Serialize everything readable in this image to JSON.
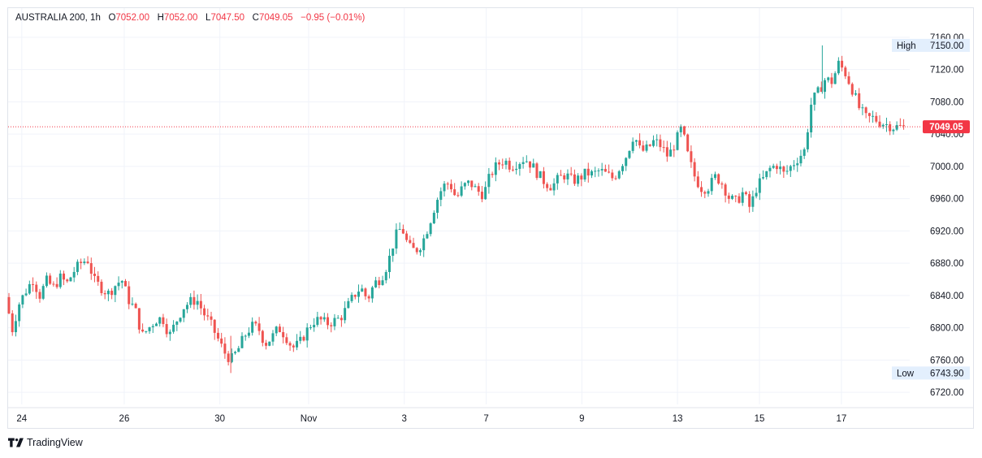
{
  "legend": {
    "symbol": "AUSTRALIA 200",
    "interval": "1h",
    "open_label": "O",
    "open": "7052.00",
    "high_label": "H",
    "high": "7052.00",
    "low_label": "L",
    "low": "7047.50",
    "close_label": "C",
    "close": "7049.05",
    "change": "−0.95 (−0.01%)"
  },
  "brand": {
    "name": "TradingView"
  },
  "colors": {
    "up": "#26a69a",
    "down": "#ef5350",
    "last_price": "#f23645",
    "grid": "#f0f3fa"
  },
  "chart_data": {
    "type": "candlestick",
    "title": "AUSTRALIA 200",
    "interval": "1h",
    "ylim": [
      6705,
      7170
    ],
    "y_ticks": [
      "7160.00",
      "7120.00",
      "7080.00",
      "7040.00",
      "7000.00",
      "6960.00",
      "6920.00",
      "6880.00",
      "6840.00",
      "6800.00",
      "6760.00",
      "6720.00"
    ],
    "x_ticks": [
      "24",
      "26",
      "30",
      "Nov",
      "3",
      "7",
      "9",
      "13",
      "15",
      "17"
    ],
    "x_range": [
      0,
      132
    ],
    "x_tick_positions": [
      2,
      17,
      31,
      44,
      58,
      70,
      84,
      98,
      110,
      122
    ],
    "grid": true,
    "last_price": "7049.05",
    "high": {
      "label": "High",
      "value": "7150.00"
    },
    "low": {
      "label": "Low",
      "value": "6743.90"
    },
    "close_path": [
      [
        0,
        6838
      ],
      [
        1,
        6798
      ],
      [
        2,
        6830
      ],
      [
        3,
        6846
      ],
      [
        4,
        6860
      ],
      [
        5,
        6840
      ],
      [
        6,
        6858
      ],
      [
        7,
        6850
      ],
      [
        8,
        6862
      ],
      [
        9,
        6855
      ],
      [
        10,
        6870
      ],
      [
        11,
        6880
      ],
      [
        12,
        6885
      ],
      [
        13,
        6858
      ],
      [
        14,
        6850
      ],
      [
        15,
        6842
      ],
      [
        16,
        6852
      ],
      [
        17,
        6860
      ],
      [
        18,
        6835
      ],
      [
        19,
        6822
      ],
      [
        20,
        6790
      ],
      [
        21,
        6800
      ],
      [
        22,
        6810
      ],
      [
        23,
        6812
      ],
      [
        24,
        6790
      ],
      [
        25,
        6808
      ],
      [
        26,
        6825
      ],
      [
        27,
        6832
      ],
      [
        28,
        6835
      ],
      [
        29,
        6818
      ],
      [
        30,
        6805
      ],
      [
        31,
        6788
      ],
      [
        32,
        6770
      ],
      [
        33,
        6760
      ],
      [
        34,
        6772
      ],
      [
        35,
        6790
      ],
      [
        36,
        6802
      ],
      [
        37,
        6800
      ],
      [
        38,
        6780
      ],
      [
        39,
        6788
      ],
      [
        40,
        6800
      ],
      [
        41,
        6790
      ],
      [
        42,
        6775
      ],
      [
        43,
        6780
      ],
      [
        44,
        6795
      ],
      [
        45,
        6808
      ],
      [
        46,
        6810
      ],
      [
        47,
        6805
      ],
      [
        48,
        6808
      ],
      [
        49,
        6812
      ],
      [
        50,
        6825
      ],
      [
        51,
        6840
      ],
      [
        52,
        6850
      ],
      [
        53,
        6835
      ],
      [
        54,
        6855
      ],
      [
        55,
        6862
      ],
      [
        56,
        6880
      ],
      [
        57,
        6912
      ],
      [
        58,
        6925
      ],
      [
        59,
        6900
      ],
      [
        60,
        6895
      ],
      [
        61,
        6905
      ],
      [
        62,
        6928
      ],
      [
        63,
        6955
      ],
      [
        64,
        6975
      ],
      [
        65,
        6980
      ],
      [
        66,
        6960
      ],
      [
        67,
        6975
      ],
      [
        68,
        6980
      ],
      [
        69,
        6970
      ],
      [
        70,
        6965
      ],
      [
        71,
        6990
      ],
      [
        72,
        7002
      ],
      [
        73,
        7008
      ],
      [
        74,
        7000
      ],
      [
        75,
        7005
      ],
      [
        76,
        7010
      ],
      [
        77,
        7002
      ],
      [
        78,
        6990
      ],
      [
        79,
        6980
      ],
      [
        80,
        6975
      ],
      [
        81,
        6985
      ],
      [
        82,
        6990
      ],
      [
        83,
        6982
      ],
      [
        84,
        6985
      ],
      [
        85,
        6992
      ],
      [
        86,
        6990
      ],
      [
        87,
        6995
      ],
      [
        88,
        6990
      ],
      [
        89,
        6985
      ],
      [
        90,
        7000
      ],
      [
        91,
        7015
      ],
      [
        92,
        7040
      ],
      [
        93,
        7018
      ],
      [
        94,
        7022
      ],
      [
        95,
        7032
      ],
      [
        96,
        7025
      ],
      [
        97,
        7012
      ],
      [
        98,
        7028
      ],
      [
        99,
        7048
      ],
      [
        100,
        7010
      ],
      [
        101,
        6985
      ],
      [
        102,
        6972
      ],
      [
        103,
        6975
      ],
      [
        104,
        6988
      ],
      [
        105,
        6978
      ],
      [
        106,
        6960
      ],
      [
        107,
        6956
      ],
      [
        108,
        6968
      ],
      [
        109,
        6948
      ],
      [
        110,
        6975
      ],
      [
        111,
        6985
      ],
      [
        112,
        6998
      ],
      [
        113,
        7002
      ],
      [
        114,
        6990
      ],
      [
        115,
        7000
      ],
      [
        116,
        7010
      ],
      [
        117,
        7020
      ],
      [
        118,
        7080
      ],
      [
        119,
        7092
      ],
      [
        120,
        7108
      ],
      [
        121,
        7105
      ],
      [
        122,
        7128
      ],
      [
        123,
        7115
      ],
      [
        124,
        7095
      ],
      [
        125,
        7072
      ],
      [
        126,
        7060
      ],
      [
        127,
        7060
      ],
      [
        128,
        7055
      ],
      [
        129,
        7052
      ],
      [
        130,
        7049
      ],
      [
        131,
        7049
      ]
    ]
  }
}
